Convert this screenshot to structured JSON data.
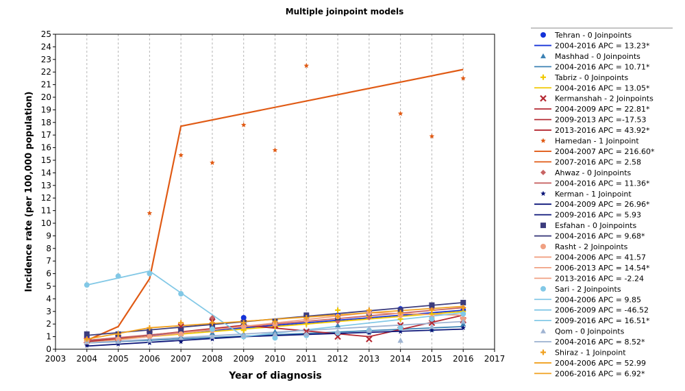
{
  "chart_data": {
    "type": "line",
    "title": "Multiple joinpoint models",
    "xlabel": "Year of diagnosis",
    "ylabel": "Incidence rate (per 100,000 population)",
    "xlim": [
      2003,
      2017
    ],
    "ylim": [
      0,
      25
    ],
    "x_ticks": [
      "2003",
      "2004",
      "2005",
      "2006",
      "2007",
      "2008",
      "2009",
      "2010",
      "2011",
      "2012",
      "2013",
      "2014",
      "2015",
      "2016",
      "2017"
    ],
    "y_ticks": [
      "0",
      "1",
      "2",
      "3",
      "4",
      "5",
      "6",
      "7",
      "8",
      "9",
      "10",
      "11",
      "12",
      "13",
      "14",
      "15",
      "16",
      "17",
      "18",
      "19",
      "20",
      "21",
      "22",
      "23",
      "24",
      "25"
    ],
    "grid": "vertical dashed at years",
    "legend_position": "right",
    "series": [
      {
        "name": "Tehran - 0 Joinpoints",
        "color": "#1432d8",
        "marker": "circle",
        "x": [
          2004,
          2005,
          2006,
          2007,
          2008,
          2009,
          2010,
          2011,
          2012,
          2013,
          2014,
          2015,
          2016
        ],
        "y": [
          1.0,
          1.0,
          1.3,
          1.3,
          2.4,
          2.5,
          2.1,
          2.7,
          2.7,
          2.6,
          3.2,
          3.4,
          3.1
        ],
        "fit_x": [
          2004,
          2016
        ],
        "fit_y": [
          0.7,
          3.1
        ],
        "fit_labels": [
          "2004-2016 APC  = 13.23*"
        ]
      },
      {
        "name": "Mashhad - 0 Joinpoints",
        "color": "#3c82b4",
        "marker": "triangle",
        "x": [
          2004,
          2005,
          2006,
          2007,
          2008,
          2009,
          2010,
          2011,
          2012,
          2013,
          2014,
          2015,
          2016
        ],
        "y": [
          0.6,
          0.7,
          0.8,
          1.0,
          1.3,
          1.2,
          1.4,
          1.3,
          1.9,
          1.4,
          0.7,
          1.6,
          2.0
        ],
        "fit_x": [
          2004,
          2016
        ],
        "fit_y": [
          0.5,
          1.8
        ],
        "fit_labels": [
          "2004-2016 APC  = 10.71*"
        ]
      },
      {
        "name": "Tabriz - 0 Joinpoints",
        "color": "#f0c800",
        "marker": "plus",
        "x": [
          2004,
          2005,
          2006,
          2007,
          2008,
          2009,
          2010,
          2011,
          2012,
          2013,
          2014,
          2015,
          2016
        ],
        "y": [
          0.7,
          0.8,
          1.0,
          1.1,
          1.6,
          1.5,
          1.8,
          2.0,
          3.1,
          2.6,
          2.4,
          2.8,
          3.0
        ],
        "fit_x": [
          2004,
          2016
        ],
        "fit_y": [
          0.6,
          3.0
        ],
        "fit_labels": [
          "2004-2016 APC  = 13.05*"
        ]
      },
      {
        "name": "Kermanshah - 2 Joinpoints",
        "color": "#b42832",
        "marker": "x",
        "x": [
          2004,
          2005,
          2006,
          2007,
          2008,
          2009,
          2010,
          2011,
          2012,
          2013,
          2014,
          2015,
          2016
        ],
        "y": [
          0.7,
          0.9,
          1.2,
          1.8,
          2.2,
          2.1,
          1.9,
          1.4,
          1.0,
          0.8,
          1.9,
          2.1,
          2.3
        ],
        "fit_x": [
          2004,
          2009,
          2013,
          2016
        ],
        "fit_y": [
          0.6,
          1.9,
          1.0,
          2.7
        ],
        "fit_labels": [
          "2004-2009 APC  = 22.81*",
          "2009-2013 APC  =-17.53",
          "2013-2016 APC  = 43.92*"
        ]
      },
      {
        "name": "Hamedan - 1 Joinpoint",
        "color": "#e05a14",
        "marker": "star",
        "x": [
          2004,
          2005,
          2006,
          2007,
          2008,
          2009,
          2010,
          2011,
          2012,
          2013,
          2014,
          2015,
          2016
        ],
        "y": [
          0.7,
          1.0,
          10.8,
          15.4,
          14.8,
          17.8,
          15.8,
          22.5,
          null,
          null,
          18.7,
          16.9,
          21.5
        ],
        "fit_x": [
          2004,
          2005,
          2006,
          2007,
          2016
        ],
        "fit_y": [
          0.7,
          1.8,
          5.6,
          17.7,
          22.2
        ],
        "fit_labels": [
          "2004-2007 APC  = 216.60*",
          "2007-2016 APC  =  2.58"
        ]
      },
      {
        "name": "Ahwaz - 0 Joinpoints",
        "color": "#c86464",
        "marker": "diamond",
        "x": [
          2004,
          2005,
          2006,
          2007,
          2008,
          2009,
          2010,
          2011,
          2012,
          2013,
          2014,
          2015,
          2016
        ],
        "y": [
          0.8,
          1.1,
          1.2,
          1.3,
          2.5,
          1.8,
          2.0,
          2.4,
          2.2,
          2.5,
          2.8,
          3.2,
          3.3
        ],
        "fit_x": [
          2004,
          2016
        ],
        "fit_y": [
          0.7,
          3.3
        ],
        "fit_labels": [
          "2004-2016 APC  = 11.36*"
        ]
      },
      {
        "name": "Kerman - 1 Joinpoint",
        "color": "#0a1478",
        "marker": "star",
        "x": [
          2004,
          2005,
          2006,
          2007,
          2008,
          2009,
          2010,
          2011,
          2012,
          2013,
          2014,
          2015,
          2016
        ],
        "y": [
          0.3,
          0.4,
          0.5,
          0.6,
          0.8,
          1.0,
          1.1,
          1.2,
          1.2,
          1.3,
          1.4,
          1.5,
          1.7
        ],
        "fit_x": [
          2004,
          2009,
          2016
        ],
        "fit_y": [
          0.25,
          1.0,
          1.6
        ],
        "fit_labels": [
          "2004-2009 APC  = 26.96*",
          "2009-2016 APC  =  5.93"
        ]
      },
      {
        "name": "Esfahan - 0 Joinpoints",
        "color": "#3c3c7d",
        "marker": "square",
        "x": [
          2004,
          2005,
          2006,
          2007,
          2008,
          2009,
          2010,
          2011,
          2012,
          2013,
          2014,
          2015,
          2016
        ],
        "y": [
          1.2,
          1.2,
          1.4,
          1.5,
          1.8,
          2.1,
          2.2,
          2.7,
          2.5,
          2.9,
          3.1,
          3.5,
          3.7
        ],
        "fit_x": [
          2004,
          2016
        ],
        "fit_y": [
          1.1,
          3.7
        ],
        "fit_labels": [
          "2004-2016 APC  = 9.68*"
        ]
      },
      {
        "name": "Rasht - 2 Joinpoints",
        "color": "#f0a082",
        "marker": "circle",
        "x": [
          2004,
          2005,
          2006,
          2007,
          2008,
          2009,
          2010,
          2011,
          2012,
          2013,
          2014,
          2015,
          2016
        ],
        "y": [
          0.6,
          0.8,
          1.0,
          1.2,
          1.5,
          1.8,
          2.0,
          2.3,
          2.6,
          2.9,
          2.7,
          2.5,
          2.4
        ],
        "fit_x": [
          2004,
          2006,
          2013,
          2016
        ],
        "fit_y": [
          0.5,
          1.0,
          2.9,
          2.7
        ],
        "fit_labels": [
          "2004-2006 APC  = 41.57",
          "2006-2013 APC  = 14.54*",
          "2013-2016 APC  = -2.24"
        ]
      },
      {
        "name": "Sari - 2 Joinpoints",
        "color": "#82c8e6",
        "marker": "circle",
        "x": [
          2004,
          2005,
          2006,
          2007,
          2008,
          2009,
          2010,
          2011,
          2012,
          2013,
          2014,
          2015,
          2016
        ],
        "y": [
          5.1,
          5.8,
          6.0,
          4.4,
          1.6,
          1.0,
          0.9,
          1.1,
          1.3,
          1.5,
          1.7,
          2.4,
          2.8
        ],
        "fit_x": [
          2004,
          2006,
          2009,
          2016
        ],
        "fit_y": [
          5.1,
          6.2,
          1.0,
          2.9
        ],
        "fit_labels": [
          "2004-2006 APC  =  9.85",
          "2006-2009 APC  = -46.52",
          "2009-2016 APC  = 16.51*"
        ]
      },
      {
        "name": "Qom - 0 Joinpoints",
        "color": "#a0b4d2",
        "marker": "triangle",
        "x": [
          2004,
          2005,
          2006,
          2007,
          2008,
          2009,
          2010,
          2011,
          2012,
          2013,
          2014,
          2015,
          2016
        ],
        "y": [
          0.6,
          0.6,
          0.7,
          0.9,
          1.0,
          1.1,
          1.2,
          1.2,
          1.4,
          1.5,
          0.7,
          1.8,
          2.2
        ],
        "fit_x": [
          2004,
          2016
        ],
        "fit_y": [
          0.5,
          2.2
        ],
        "fit_labels": [
          "2004-2016 APC  = 8.52*"
        ]
      },
      {
        "name": "Shiraz - 1 Joinpoint",
        "color": "#f0a01e",
        "marker": "plus",
        "x": [
          2004,
          2005,
          2006,
          2007,
          2008,
          2009,
          2010,
          2011,
          2012,
          2013,
          2014,
          2015,
          2016
        ],
        "y": [
          0.8,
          1.2,
          1.7,
          2.1,
          2.1,
          2.1,
          2.2,
          2.5,
          2.6,
          3.1,
          2.9,
          3.1,
          3.3
        ],
        "fit_x": [
          2004,
          2006,
          2016
        ],
        "fit_y": [
          0.8,
          1.7,
          3.4
        ],
        "fit_labels": [
          "2004-2006 APC  = 52.99",
          "2006-2016 APC  =  6.92*"
        ]
      }
    ]
  }
}
